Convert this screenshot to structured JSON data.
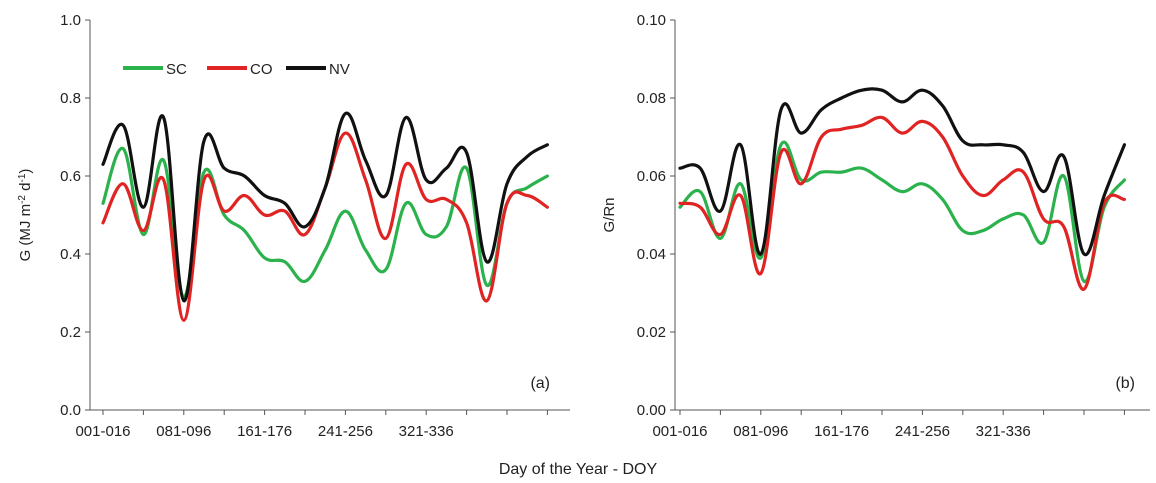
{
  "figure": {
    "xlabel": "Day of the Year - DOY"
  },
  "chart_data": [
    {
      "type": "line",
      "panel_label": "(a)",
      "ylabel_main": "G (MJ m",
      "ylabel_sup1": "-2",
      "ylabel_mid": " d",
      "ylabel_sup2": "-1",
      "ylabel_end": ")",
      "xlabel": "",
      "ylim": [
        0,
        1.0
      ],
      "yticks": [
        "0.0",
        "0.2",
        "0.4",
        "0.6",
        "0.8",
        "1.0"
      ],
      "x_tick_labels": [
        "001-016",
        "081-096",
        "161-176",
        "241-256",
        "321-336"
      ],
      "x": [
        1,
        2,
        3,
        4,
        5,
        6,
        7,
        8,
        9,
        10,
        11,
        12,
        13,
        14,
        15,
        16,
        17,
        18,
        19,
        20,
        21,
        22,
        23
      ],
      "legend": {
        "placement": "top-left",
        "entries": [
          "SC",
          "CO",
          "NV"
        ]
      },
      "grid": false,
      "series": [
        {
          "name": "SC",
          "color": "#2bb24c",
          "values": [
            0.53,
            0.67,
            0.45,
            0.64,
            0.29,
            0.61,
            0.5,
            0.46,
            0.39,
            0.38,
            0.33,
            0.41,
            0.51,
            0.41,
            0.36,
            0.53,
            0.45,
            0.47,
            0.62,
            0.32,
            0.53,
            0.57,
            0.6
          ]
        },
        {
          "name": "CO",
          "color": "#e02424",
          "values": [
            0.48,
            0.58,
            0.46,
            0.59,
            0.23,
            0.59,
            0.51,
            0.55,
            0.5,
            0.51,
            0.45,
            0.57,
            0.71,
            0.59,
            0.44,
            0.63,
            0.54,
            0.54,
            0.48,
            0.28,
            0.53,
            0.55,
            0.52
          ]
        },
        {
          "name": "NV",
          "color": "#111111",
          "values": [
            0.63,
            0.73,
            0.52,
            0.75,
            0.28,
            0.69,
            0.62,
            0.6,
            0.55,
            0.53,
            0.47,
            0.57,
            0.76,
            0.64,
            0.55,
            0.75,
            0.59,
            0.62,
            0.66,
            0.38,
            0.58,
            0.65,
            0.68
          ]
        }
      ]
    },
    {
      "type": "line",
      "panel_label": "(b)",
      "ylabel_main": "G/Rn",
      "xlabel": "",
      "ylim": [
        0,
        0.1
      ],
      "yticks": [
        "0.00",
        "0.02",
        "0.04",
        "0.06",
        "0.08",
        "0.10"
      ],
      "x_tick_labels": [
        "001-016",
        "081-096",
        "161-176",
        "241-256",
        "321-336"
      ],
      "x": [
        1,
        2,
        3,
        4,
        5,
        6,
        7,
        8,
        9,
        10,
        11,
        12,
        13,
        14,
        15,
        16,
        17,
        18,
        19,
        20,
        21,
        22,
        23
      ],
      "grid": false,
      "series": [
        {
          "name": "SC",
          "color": "#2bb24c",
          "values": [
            0.052,
            0.056,
            0.044,
            0.058,
            0.039,
            0.068,
            0.059,
            0.061,
            0.061,
            0.062,
            0.059,
            0.056,
            0.058,
            0.054,
            0.046,
            0.046,
            0.049,
            0.05,
            0.043,
            0.06,
            0.033,
            0.052,
            0.059
          ]
        },
        {
          "name": "CO",
          "color": "#e02424",
          "values": [
            0.053,
            0.052,
            0.045,
            0.055,
            0.035,
            0.066,
            0.058,
            0.07,
            0.072,
            0.073,
            0.075,
            0.071,
            0.074,
            0.07,
            0.06,
            0.055,
            0.059,
            0.061,
            0.049,
            0.047,
            0.031,
            0.053,
            0.054
          ]
        },
        {
          "name": "NV",
          "color": "#111111",
          "values": [
            0.062,
            0.062,
            0.051,
            0.068,
            0.04,
            0.077,
            0.071,
            0.077,
            0.08,
            0.082,
            0.082,
            0.079,
            0.082,
            0.078,
            0.069,
            0.068,
            0.068,
            0.066,
            0.056,
            0.065,
            0.04,
            0.055,
            0.068
          ]
        }
      ]
    }
  ]
}
